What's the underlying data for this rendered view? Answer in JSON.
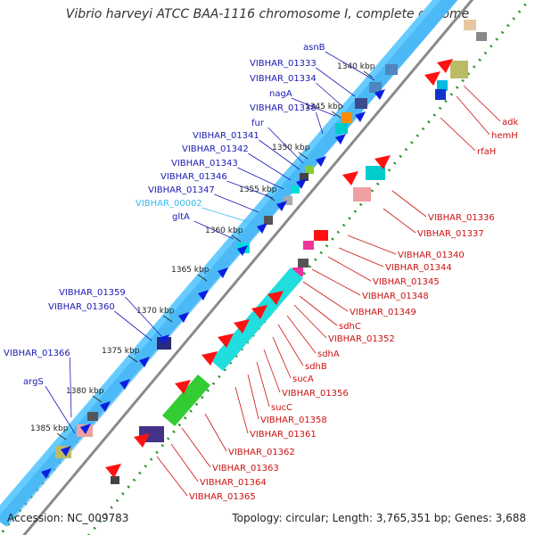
{
  "title": "Vibrio harveyi ATCC BAA-1116 chromosome I, complete genome",
  "footer": {
    "accession": "Accession: NC_009783",
    "summary": "Topology: circular; Length: 3,765,351 bp; Genes: 3,688"
  },
  "colors": {
    "forward_label": "#1a1ab3",
    "reverse_label": "#cc1111",
    "highlight_label": "#33bbee",
    "backbone_light": "#66ccff",
    "backbone_mid": "#33aaee",
    "tick": "#228822"
  },
  "kbp_ticks": [
    "1340 kbp",
    "1345 kbp",
    "1350 kbp",
    "1355 kbp",
    "1360 kbp",
    "1365 kbp",
    "1370 kbp",
    "1375 kbp",
    "1380 kbp",
    "1385 kbp"
  ],
  "left_labels": [
    {
      "text": "asnB",
      "highlight": false
    },
    {
      "text": "VIBHAR_01333",
      "highlight": false
    },
    {
      "text": "VIBHAR_01334",
      "highlight": false
    },
    {
      "text": "nagA",
      "highlight": false
    },
    {
      "text": "VIBHAR_01338",
      "highlight": false
    },
    {
      "text": "fur",
      "highlight": false
    },
    {
      "text": "VIBHAR_01341",
      "highlight": false
    },
    {
      "text": "VIBHAR_01342",
      "highlight": false
    },
    {
      "text": "VIBHAR_01343",
      "highlight": false
    },
    {
      "text": "VIBHAR_01346",
      "highlight": false
    },
    {
      "text": "VIBHAR_01347",
      "highlight": false
    },
    {
      "text": "VIBHAR_00002",
      "highlight": true
    },
    {
      "text": "gltA",
      "highlight": false
    },
    {
      "text": "VIBHAR_01359",
      "highlight": false
    },
    {
      "text": "VIBHAR_01360",
      "highlight": false
    },
    {
      "text": "VIBHAR_01366",
      "highlight": false
    },
    {
      "text": "argS",
      "highlight": false
    }
  ],
  "right_labels": [
    {
      "text": "adk"
    },
    {
      "text": "hemH"
    },
    {
      "text": "rfaH"
    },
    {
      "text": "VIBHAR_01336"
    },
    {
      "text": "VIBHAR_01337"
    },
    {
      "text": "VIBHAR_01340"
    },
    {
      "text": "VIBHAR_01344"
    },
    {
      "text": "VIBHAR_01345"
    },
    {
      "text": "VIBHAR_01348"
    },
    {
      "text": "VIBHAR_01349"
    },
    {
      "text": "sdhC"
    },
    {
      "text": "VIBHAR_01352"
    },
    {
      "text": "sdhA"
    },
    {
      "text": "sdhB"
    },
    {
      "text": "sucA"
    },
    {
      "text": "VIBHAR_01356"
    },
    {
      "text": "sucC"
    },
    {
      "text": "VIBHAR_01358"
    },
    {
      "text": "VIBHAR_01361"
    },
    {
      "text": "VIBHAR_01362"
    },
    {
      "text": "VIBHAR_01363"
    },
    {
      "text": "VIBHAR_01364"
    },
    {
      "text": "VIBHAR_01365"
    }
  ]
}
